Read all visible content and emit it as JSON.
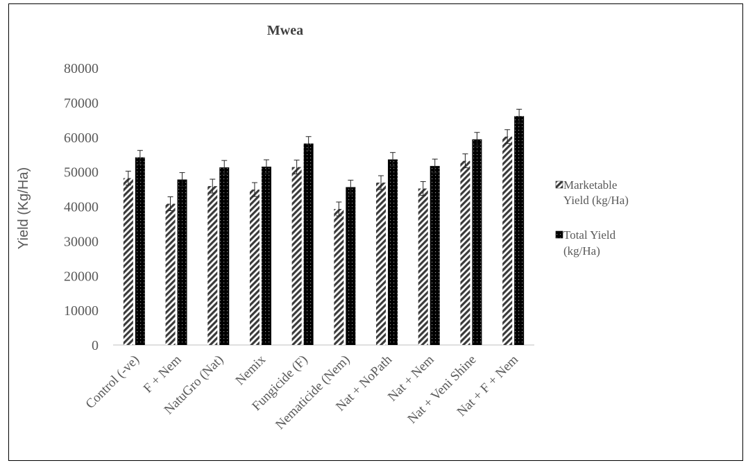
{
  "chart_data": {
    "type": "bar",
    "title": "Mwea",
    "ylabel": "Yield (Kg/Ha)",
    "xlabel": "",
    "ylim": [
      0,
      80000
    ],
    "yticks": [
      0,
      10000,
      20000,
      30000,
      40000,
      50000,
      60000,
      70000,
      80000
    ],
    "categories": [
      "Control (-ve)",
      "F + Nem",
      "NatuGro (Nat)",
      "Nemix",
      "Fungicide (F)",
      "Nematicide (Nem)",
      "Nat + NoPath",
      "Nat + Nem",
      "Nat + Veni Shine",
      "Nat + F + Nem"
    ],
    "series": [
      {
        "name": "Marketable Yield (kg/Ha)",
        "pattern": "diagonal-hatch",
        "values": [
          48200,
          40800,
          45900,
          44900,
          51400,
          39300,
          46900,
          45200,
          53200,
          60200
        ],
        "errors": [
          2000,
          2000,
          2000,
          2000,
          2000,
          2000,
          2000,
          2000,
          2000,
          2000
        ]
      },
      {
        "name": "Total Yield (kg/Ha)",
        "pattern": "dotted-black",
        "values": [
          54200,
          47800,
          51300,
          51500,
          58200,
          45600,
          53600,
          51700,
          59400,
          66100
        ],
        "errors": [
          2000,
          2000,
          2000,
          2000,
          2000,
          2000,
          2000,
          2000,
          2000,
          2000
        ]
      }
    ],
    "legend": [
      {
        "lines": [
          "Marketable",
          "Yield (kg/Ha)"
        ]
      },
      {
        "lines": [
          "Total Yield",
          "(kg/Ha)"
        ]
      }
    ],
    "legend_position": "right",
    "grid": false,
    "error_bars": true
  }
}
